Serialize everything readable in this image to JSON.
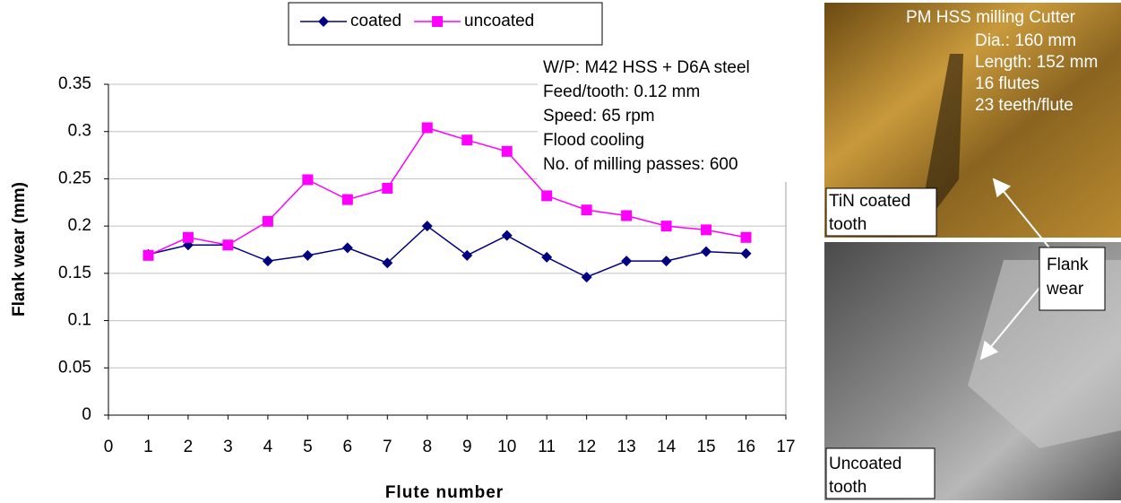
{
  "chart_data": {
    "type": "line",
    "legend": "top",
    "xlabel": "Flute number",
    "ylabel": "Flank wear (mm)",
    "x": [
      1,
      2,
      3,
      4,
      5,
      6,
      7,
      8,
      9,
      10,
      11,
      12,
      13,
      14,
      15,
      16
    ],
    "series": [
      {
        "name": "coated",
        "color": "#000080",
        "marker": "diamond",
        "values": [
          0.17,
          0.18,
          0.18,
          0.163,
          0.169,
          0.177,
          0.161,
          0.2,
          0.169,
          0.19,
          0.167,
          0.146,
          0.163,
          0.163,
          0.173,
          0.171
        ]
      },
      {
        "name": "uncoated",
        "color": "#ff00ff",
        "marker": "square",
        "values": [
          0.169,
          0.188,
          0.18,
          0.205,
          0.249,
          0.228,
          0.24,
          0.304,
          0.291,
          0.279,
          0.232,
          0.217,
          0.211,
          0.2,
          0.196,
          0.188
        ]
      }
    ],
    "xlim": [
      0,
      17
    ],
    "xticks": [
      0,
      1,
      2,
      3,
      4,
      5,
      6,
      7,
      8,
      9,
      10,
      11,
      12,
      13,
      14,
      15,
      16,
      17
    ],
    "ylim": [
      0,
      0.35
    ],
    "yticks": [
      0,
      0.05,
      0.1,
      0.15,
      0.2,
      0.25,
      0.3,
      0.35
    ],
    "grid": true,
    "annotations": [
      "W/P: M42 HSS + D6A steel",
      "Feed/tooth: 0.12 mm",
      "Speed: 65 rpm",
      "Flood cooling",
      "No. of milling passes: 600"
    ]
  },
  "photos": {
    "cutter_specs": [
      "PM HSS milling Cutter",
      "Dia.: 160 mm",
      "Length: 152 mm",
      "16 flutes",
      "23 teeth/flute"
    ],
    "coated_label": [
      "TiN  coated",
      "tooth"
    ],
    "uncoated_label": [
      "Uncoated",
      "tooth"
    ],
    "wear_label": [
      "Flank",
      "wear"
    ]
  }
}
